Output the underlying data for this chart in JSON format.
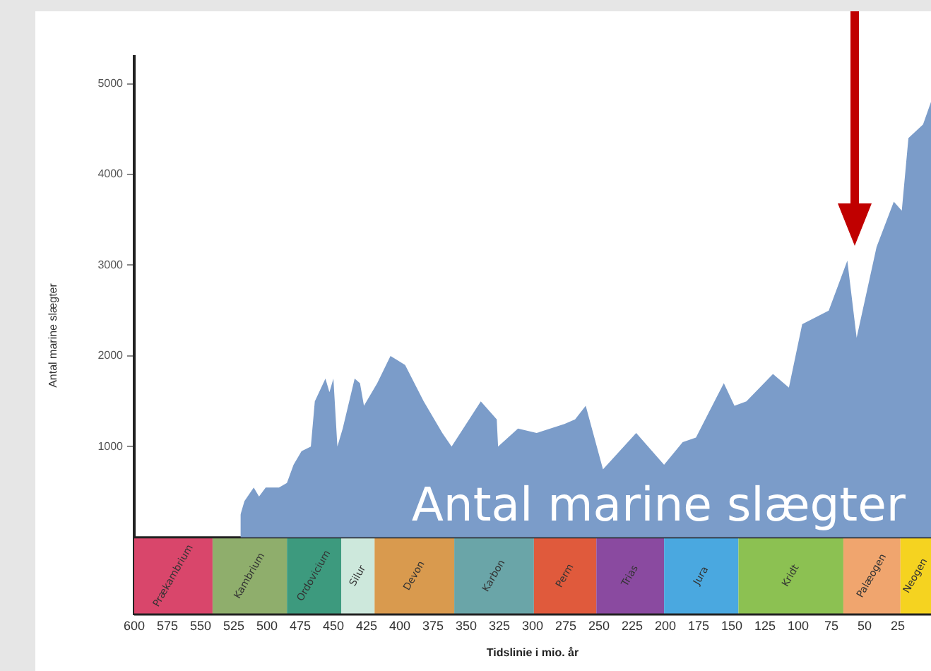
{
  "chart_data": {
    "type": "area",
    "ylabel": "Antal marine slægter",
    "xlabel": "Tidslinie i mio. år",
    "annotations": [
      "Antal marine slægter"
    ],
    "x": [
      520,
      517,
      510,
      506,
      501,
      491,
      485,
      480,
      474,
      467,
      464,
      456,
      453,
      450,
      447,
      443,
      434,
      430,
      427,
      417,
      407,
      396,
      382,
      368,
      361,
      339,
      327,
      326,
      311,
      297,
      276,
      268,
      260,
      247,
      222,
      201,
      187,
      177,
      156,
      148,
      139,
      119,
      107,
      97,
      77,
      63,
      56,
      41,
      28,
      22,
      17,
      6,
      0
    ],
    "series": [
      {
        "color": "#7b9cc9",
        "values": [
          250,
          400,
          550,
          450,
          550,
          550,
          600,
          800,
          950,
          1000,
          1500,
          1750,
          1600,
          1750,
          1000,
          1200,
          1750,
          1700,
          1450,
          1700,
          2000,
          1900,
          1500,
          1150,
          1000,
          1500,
          1300,
          1000,
          1200,
          1150,
          1250,
          1300,
          1450,
          750,
          1150,
          800,
          1050,
          1100,
          1700,
          1450,
          1500,
          1800,
          1650,
          2350,
          2500,
          3050,
          2200,
          3200,
          3700,
          3600,
          4400,
          4550,
          4800
        ]
      }
    ],
    "xlim": [
      600,
      0
    ],
    "xticks": [
      600,
      575,
      550,
      525,
      500,
      475,
      450,
      425,
      400,
      375,
      350,
      325,
      300,
      275,
      250,
      225,
      200,
      175,
      150,
      125,
      100,
      75,
      50,
      25
    ],
    "ylim": [
      -850,
      5300
    ],
    "yticks": [
      {
        "value": 1000,
        "label": "1000"
      },
      {
        "value": 2000,
        "label": "2000"
      },
      {
        "value": 3000,
        "label": "3000"
      },
      {
        "value": 4000,
        "label": "4000"
      },
      {
        "value": 5000,
        "label": "5000"
      }
    ],
    "bands": [
      {
        "axis": "x",
        "from": 600,
        "to": 541,
        "label": "Prækambrium",
        "color": "#d9466b"
      },
      {
        "axis": "x",
        "from": 541,
        "to": 485,
        "label": "Kambrium",
        "color": "#8fae6c"
      },
      {
        "axis": "x",
        "from": 485,
        "to": 444,
        "label": "Ordovicium",
        "color": "#3d9a7e"
      },
      {
        "axis": "x",
        "from": 444,
        "to": 419,
        "label": "Silur",
        "color": "#cde8dc"
      },
      {
        "axis": "x",
        "from": 419,
        "to": 359,
        "label": "Devon",
        "color": "#d99a4e"
      },
      {
        "axis": "x",
        "from": 359,
        "to": 299,
        "label": "Karbon",
        "color": "#6aa5a8"
      },
      {
        "axis": "x",
        "from": 299,
        "to": 252,
        "label": "Perm",
        "color": "#e05a3c"
      },
      {
        "axis": "x",
        "from": 252,
        "to": 201,
        "label": "Trias",
        "color": "#8a4aa0"
      },
      {
        "axis": "x",
        "from": 201,
        "to": 145,
        "label": "Jura",
        "color": "#4aa8e0"
      },
      {
        "axis": "x",
        "from": 145,
        "to": 66,
        "label": "Kridt",
        "color": "#8cc152"
      },
      {
        "axis": "x",
        "from": 66,
        "to": 23,
        "label": "Palæogen",
        "color": "#f0a56e"
      },
      {
        "axis": "x",
        "from": 23,
        "to": 0,
        "label": "Neogen",
        "color": "#f5d320"
      }
    ],
    "grid": false,
    "legend": false
  }
}
